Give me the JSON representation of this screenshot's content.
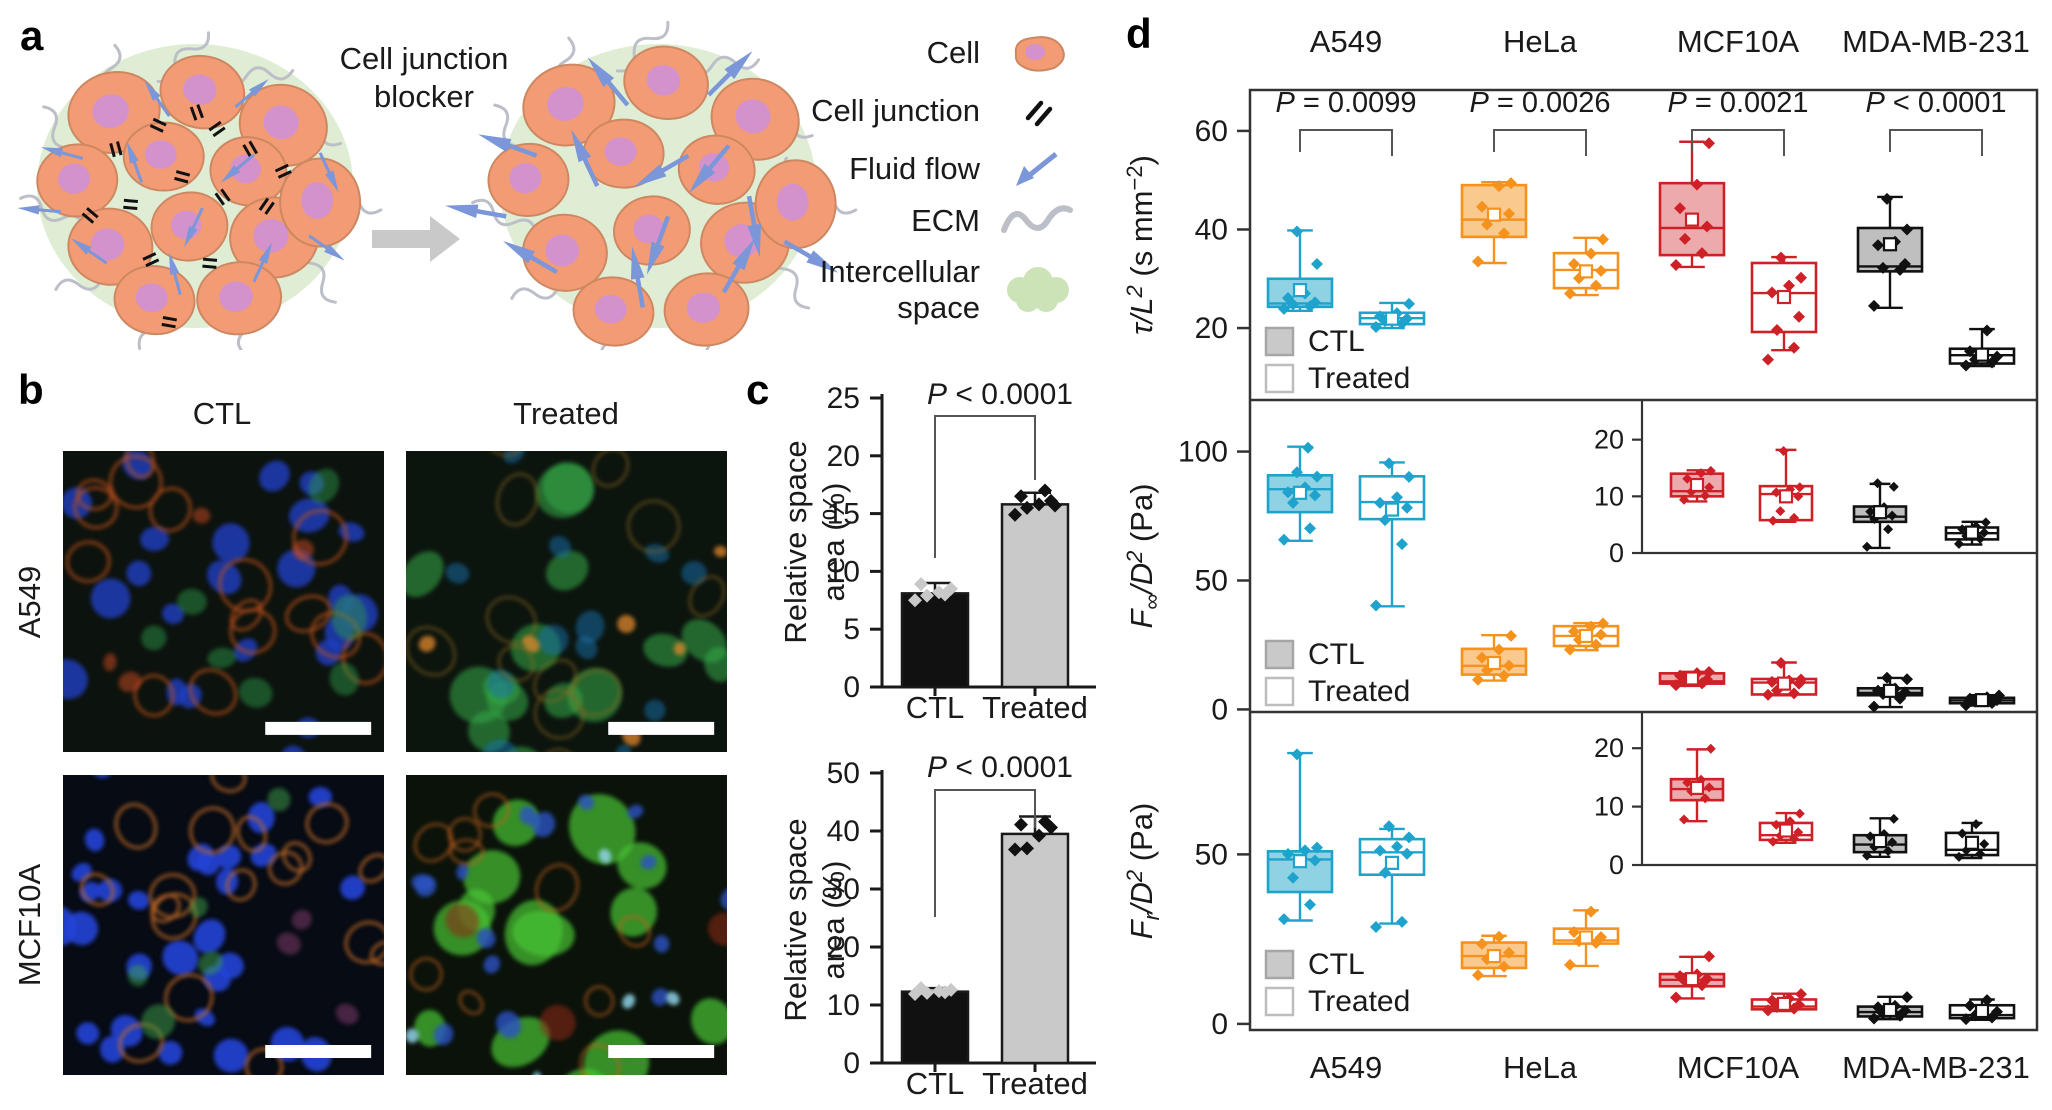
{
  "panel_a": {
    "label": "a",
    "transition_label": [
      "Cell junction",
      "blocker"
    ],
    "legend": [
      {
        "name": "cell",
        "label": "Cell"
      },
      {
        "name": "cell-junction",
        "label": "Cell junction"
      },
      {
        "name": "fluid-flow",
        "label": "Fluid flow"
      },
      {
        "name": "ecm",
        "label": "ECM"
      },
      {
        "name": "intercellular-space",
        "label": "Intercellular space"
      }
    ],
    "colors": {
      "cluster_bg": "#dfedd5",
      "cell_body": "#f29b74",
      "cell_stroke": "#cd8861",
      "nucleus": "#d392cc",
      "flow_arrow": "#7b96d9",
      "ecm": "#bcbfc7",
      "junction": "#111111",
      "transition_arrow": "#c9c9c9"
    }
  },
  "panel_b": {
    "label": "b",
    "col_headers": [
      "CTL",
      "Treated"
    ],
    "row_labels": [
      "A549",
      "MCF10A"
    ]
  },
  "panel_c": {
    "label": "c"
  },
  "panel_d": {
    "label": "d",
    "col_headers": [
      "A549",
      "HeLa",
      "MCF10A",
      "MDA-MB-231"
    ],
    "x_labels": [
      "A549",
      "HeLa",
      "MCF10A",
      "MDA-MB-231"
    ],
    "legend": [
      "CTL",
      "Treated"
    ],
    "colors": {
      "A549": "#1fa3cc",
      "HeLa": "#f5921d",
      "MCF10A": "#ce2127",
      "MDA-MB-231": "#111111"
    },
    "fill_colors": {
      "A549": "#8ed2e4",
      "HeLa": "#f9c98e",
      "MCF10A": "#edaaad",
      "MDA-MB-231": "#bfbfbf"
    }
  },
  "chart_data": [
    {
      "id": "c-top",
      "type": "bar",
      "title": "P < 0.0001",
      "ylabel_lines": [
        "Relative space",
        "area (%)"
      ],
      "ylim": [
        0,
        25
      ],
      "yticks": [
        0,
        5,
        10,
        15,
        20,
        25
      ],
      "categories": [
        "CTL",
        "Treated"
      ],
      "values": [
        8.1,
        15.8
      ],
      "errors": [
        0.9,
        1.0
      ],
      "points": [
        [
          7.5,
          7.9,
          8.2,
          8.5,
          8.9,
          8.0
        ],
        [
          14.9,
          15.5,
          15.8,
          16.1,
          16.5,
          17.0,
          15.7
        ]
      ],
      "bar_colors": [
        "#111111",
        "#c9c9c9"
      ],
      "point_colors": [
        "#c9c9c9",
        "#111111"
      ]
    },
    {
      "id": "c-bottom",
      "type": "bar",
      "title": "P < 0.0001",
      "ylabel_lines": [
        "Relative space",
        "area (%)"
      ],
      "ylim": [
        0,
        50
      ],
      "yticks": [
        0,
        10,
        20,
        30,
        40,
        50
      ],
      "categories": [
        "CTL",
        "Treated"
      ],
      "values": [
        12.3,
        39.5
      ],
      "errors": [
        0.6,
        3.0
      ],
      "points": [
        [
          11.9,
          12.1,
          12.4,
          12.6,
          12.9,
          12.2
        ],
        [
          36.8,
          37.0,
          39.2,
          40.6,
          41.1,
          41.6
        ]
      ],
      "bar_colors": [
        "#111111",
        "#c9c9c9"
      ],
      "point_colors": [
        "#c9c9c9",
        "#111111"
      ]
    },
    {
      "id": "d-row1",
      "type": "box",
      "ylabel": "τ/L² (s mm⁻²)",
      "ylabel_segments": [
        {
          "t": "τ/L",
          "it": 1
        },
        {
          "t": "2",
          "it": 1,
          "sup": 1
        },
        {
          "t": " (s mm"
        },
        {
          "t": "−2",
          "sup": 1
        },
        {
          "t": ")"
        }
      ],
      "yticks": [
        20,
        40,
        60
      ],
      "groups": [
        "A549",
        "HeLa",
        "MCF10A",
        "MDA-MB-231"
      ],
      "conditions": [
        "CTL",
        "Treated"
      ],
      "p_labels": [
        "P = 0.0099",
        "P = 0.0026",
        "P = 0.0021",
        "P < 0.0001"
      ],
      "boxes": {
        "A549": {
          "CTL": {
            "whislo": 23.5,
            "q1": 24.3,
            "med": 25.0,
            "q3": 30.0,
            "whishi": 39.8,
            "mean": 27.7,
            "points": [
              23.9,
              24.4,
              24.8,
              25.2,
              26.1,
              27.0,
              33.0,
              39.6
            ]
          },
          "Treated": {
            "whislo": 20.0,
            "q1": 20.8,
            "med": 22.0,
            "q3": 23.1,
            "whishi": 25.1,
            "mean": 21.9,
            "points": [
              20.2,
              20.9,
              21.4,
              21.9,
              22.4,
              23.0,
              24.9
            ]
          }
        },
        "HeLa": {
          "CTL": {
            "whislo": 33.2,
            "q1": 38.5,
            "med": 42.0,
            "q3": 49.0,
            "whishi": 49.6,
            "mean": 43.0,
            "points": [
              33.5,
              39.2,
              41.0,
              43.2,
              44.6,
              48.8,
              49.4
            ]
          },
          "Treated": {
            "whislo": 26.7,
            "q1": 28.1,
            "med": 31.8,
            "q3": 35.2,
            "whishi": 38.3,
            "mean": 31.5,
            "points": [
              27.0,
              28.6,
              30.1,
              31.6,
              33.0,
              35.1,
              38.0
            ]
          }
        },
        "MCF10A": {
          "CTL": {
            "whislo": 32.4,
            "q1": 34.8,
            "med": 40.3,
            "q3": 49.4,
            "whishi": 57.8,
            "mean": 42.0,
            "points": [
              32.8,
              35.2,
              38.1,
              40.6,
              44.3,
              49.1,
              57.5
            ]
          },
          "Treated": {
            "whislo": 15.5,
            "q1": 19.2,
            "med": 27.1,
            "q3": 33.2,
            "whishi": 34.4,
            "mean": 26.3,
            "points": [
              13.6,
              16.0,
              19.6,
              22.3,
              27.2,
              28.6,
              30.2,
              34.3
            ]
          }
        },
        "MDA-MB-231": {
          "CTL": {
            "whislo": 24.1,
            "q1": 31.5,
            "med": 32.5,
            "q3": 40.3,
            "whishi": 46.6,
            "mean": 37.0,
            "points": [
              24.5,
              31.8,
              32.2,
              33.0,
              36.8,
              37.5,
              40.0,
              46.2
            ]
          },
          "Treated": {
            "whislo": 12.3,
            "q1": 12.8,
            "med": 14.5,
            "q3": 15.8,
            "whishi": 19.8,
            "mean": 14.6,
            "points": [
              12.4,
              13.0,
              13.6,
              14.2,
              15.3,
              19.5
            ]
          }
        }
      }
    },
    {
      "id": "d-row2",
      "type": "box",
      "ylabel": "F∞/D² (Pa)",
      "ylabel_segments": [
        {
          "t": "F",
          "it": 1
        },
        {
          "t": "∞",
          "sub": 1
        },
        {
          "t": "/D",
          "it": 1
        },
        {
          "t": "2",
          "it": 1,
          "sup": 1
        },
        {
          "t": " (Pa)"
        }
      ],
      "yticks": [
        0,
        50,
        100
      ],
      "groups": [
        "A549",
        "HeLa",
        "MCF10A",
        "MDA-MB-231"
      ],
      "conditions": [
        "CTL",
        "Treated"
      ],
      "inset": {
        "yticks": [
          0,
          10,
          20
        ],
        "groups": [
          "MCF10A",
          "MDA-MB-231"
        ]
      },
      "boxes": {
        "A549": {
          "CTL": {
            "whislo": 65.4,
            "q1": 76.5,
            "med": 85.4,
            "q3": 90.8,
            "whishi": 101.9,
            "mean": 84.0,
            "points": [
              65.8,
              70.2,
              80.1,
              83.0,
              84.2,
              86.1,
              90.3,
              92.0,
              101.5
            ]
          },
          "Treated": {
            "whislo": 40.0,
            "q1": 73.8,
            "med": 80.4,
            "q3": 90.4,
            "whishi": 95.8,
            "mean": 77.5,
            "points": [
              40.3,
              64.1,
              73.4,
              78.2,
              80.1,
              82.3,
              90.2,
              95.4
            ]
          }
        },
        "HeLa": {
          "CTL": {
            "whislo": 11.2,
            "q1": 13.5,
            "med": 16.9,
            "q3": 23.5,
            "whishi": 28.8,
            "mean": 18.0,
            "points": [
              11.5,
              13.1,
              15.2,
              17.0,
              20.1,
              23.2,
              28.5
            ]
          },
          "Treated": {
            "whislo": 23.0,
            "q1": 24.6,
            "med": 28.5,
            "q3": 32.3,
            "whishi": 33.5,
            "mean": 28.5,
            "points": [
              23.2,
              25.1,
              27.0,
              29.0,
              30.2,
              32.1,
              33.3
            ]
          }
        },
        "MCF10A": {
          "CTL": {
            "whislo": 9.1,
            "q1": 10.0,
            "med": 10.9,
            "q3": 14.0,
            "whishi": 14.6,
            "mean": 12.0,
            "points": [
              9.4,
              10.1,
              10.8,
              11.6,
              13.1,
              14.1,
              14.5
            ]
          },
          "Treated": {
            "whislo": 5.5,
            "q1": 5.8,
            "med": 10.4,
            "q3": 11.8,
            "whishi": 18.2,
            "mean": 10.0,
            "points": [
              5.7,
              6.2,
              7.4,
              10.0,
              10.7,
              11.2,
              11.6,
              18.0
            ]
          }
        },
        "MDA-MB-231": {
          "CTL": {
            "whislo": 0.9,
            "q1": 5.5,
            "med": 6.4,
            "q3": 8.2,
            "whishi": 12.2,
            "mean": 7.2,
            "points": [
              1.1,
              4.2,
              6.0,
              6.6,
              7.3,
              8.1,
              11.7,
              12.3
            ]
          },
          "Treated": {
            "whislo": 1.5,
            "q1": 2.4,
            "med": 3.5,
            "q3": 4.5,
            "whishi": 5.5,
            "mean": 3.6,
            "points": [
              1.6,
              2.5,
              3.0,
              3.6,
              4.2,
              4.7,
              5.4
            ]
          }
        }
      }
    },
    {
      "id": "d-row3",
      "type": "box",
      "ylabel": "Fr/D² (Pa)",
      "ylabel_segments": [
        {
          "t": "F",
          "it": 1
        },
        {
          "t": "r",
          "it": 1,
          "sub": 1
        },
        {
          "t": "/D",
          "it": 1
        },
        {
          "t": "2",
          "it": 1,
          "sup": 1
        },
        {
          "t": " (Pa)"
        }
      ],
      "yticks": [
        0,
        50
      ],
      "groups": [
        "A549",
        "HeLa",
        "MCF10A",
        "MDA-MB-231"
      ],
      "conditions": [
        "CTL",
        "Treated"
      ],
      "inset": {
        "yticks": [
          0,
          10,
          20
        ],
        "groups": [
          "MCF10A",
          "MDA-MB-231"
        ]
      },
      "boxes": {
        "A549": {
          "CTL": {
            "whislo": 30.5,
            "q1": 38.9,
            "med": 48.5,
            "q3": 50.9,
            "whishi": 79.9,
            "mean": 48.0,
            "points": [
              30.9,
              35.2,
              43.1,
              48.2,
              50.1,
              51.2,
              52.0,
              79.5
            ]
          },
          "Treated": {
            "whislo": 29.6,
            "q1": 44.0,
            "med": 50.6,
            "q3": 54.5,
            "whishi": 57.5,
            "mean": 47.5,
            "points": [
              28.6,
              30.1,
              44.6,
              50.2,
              51.1,
              52.3,
              55.0,
              58.3
            ]
          }
        },
        "HeLa": {
          "CTL": {
            "whislo": 14.1,
            "q1": 16.5,
            "med": 20.0,
            "q3": 24.0,
            "whishi": 26.0,
            "mean": 20.0,
            "points": [
              14.4,
              16.9,
              19.1,
              21.0,
              23.6,
              25.7
            ]
          },
          "Treated": {
            "whislo": 17.1,
            "q1": 23.7,
            "med": 24.6,
            "q3": 28.1,
            "whishi": 33.5,
            "mean": 25.5,
            "points": [
              17.4,
              23.9,
              24.4,
              25.6,
              27.1,
              33.1
            ]
          }
        },
        "MCF10A": {
          "CTL": {
            "whislo": 7.5,
            "q1": 11.1,
            "med": 13.0,
            "q3": 14.7,
            "whishi": 19.8,
            "mean": 13.2,
            "points": [
              7.8,
              11.4,
              12.6,
              13.3,
              14.1,
              14.6,
              19.9
            ]
          },
          "Treated": {
            "whislo": 3.8,
            "q1": 4.3,
            "med": 5.1,
            "q3": 7.2,
            "whishi": 8.9,
            "mean": 5.9,
            "points": [
              4.0,
              4.5,
              5.0,
              5.6,
              6.9,
              7.5,
              8.8
            ]
          }
        },
        "MDA-MB-231": {
          "CTL": {
            "whislo": 1.4,
            "q1": 2.2,
            "med": 3.5,
            "q3": 5.1,
            "whishi": 8.0,
            "mean": 4.1,
            "points": [
              1.6,
              2.4,
              3.1,
              3.9,
              4.9,
              5.3,
              7.9
            ]
          },
          "Treated": {
            "whislo": 1.2,
            "q1": 1.7,
            "med": 2.6,
            "q3": 5.5,
            "whishi": 7.2,
            "mean": 3.8,
            "points": [
              1.4,
              1.9,
              2.5,
              3.6,
              5.4,
              7.0
            ]
          }
        }
      }
    }
  ]
}
